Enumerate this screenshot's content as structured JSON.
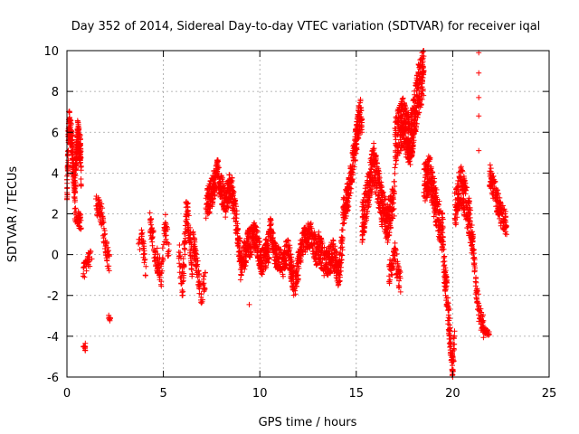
{
  "chart_data": {
    "type": "scatter",
    "title": "Day 352 of 2014, Sidereal Day-to-day VTEC variation (SDTVAR) for receiver iqal",
    "xlabel": "GPS time / hours",
    "ylabel": "SDTVAR / TECUs",
    "xlim": [
      0,
      25
    ],
    "ylim": [
      -6,
      10
    ],
    "xticks": [
      0,
      5,
      10,
      15,
      20,
      25
    ],
    "yticks": [
      -6,
      -4,
      -2,
      0,
      2,
      4,
      6,
      8,
      10
    ],
    "grid": true,
    "marker": "+",
    "colors": {
      "marker": "#ff0000",
      "grid": "#a0a0a0",
      "axis": "#000000"
    },
    "series": [
      {
        "name": "SDTVAR",
        "segments": [
          {
            "t0": 0.0,
            "t1": 0.75,
            "knots": [
              [
                0.0,
                3.0
              ],
              [
                0.1,
                6.5
              ],
              [
                0.25,
                5.5
              ],
              [
                0.4,
                3.0
              ],
              [
                0.55,
                6.0
              ],
              [
                0.7,
                5.0
              ],
              [
                0.75,
                3.5
              ]
            ],
            "spread": 1.5,
            "n": 320
          },
          {
            "t0": 0.4,
            "t1": 0.75,
            "knots": [
              [
                0.4,
                2.0
              ],
              [
                0.75,
                1.5
              ]
            ],
            "spread": 0.8,
            "n": 40
          },
          {
            "t0": 0.8,
            "t1": 1.3,
            "knots": [
              [
                0.8,
                -1.0
              ],
              [
                1.0,
                -0.5
              ],
              [
                1.3,
                0.0
              ]
            ],
            "spread": 0.8,
            "n": 40
          },
          {
            "t0": 0.85,
            "t1": 0.95,
            "knots": [
              [
                0.85,
                -4.4
              ],
              [
                0.95,
                -4.6
              ]
            ],
            "spread": 0.2,
            "n": 8
          },
          {
            "t0": 1.5,
            "t1": 2.2,
            "knots": [
              [
                1.5,
                2.5
              ],
              [
                1.8,
                2.0
              ],
              [
                2.0,
                0.5
              ],
              [
                2.2,
                -0.5
              ]
            ],
            "spread": 1.2,
            "n": 80
          },
          {
            "t0": 2.15,
            "t1": 2.25,
            "knots": [
              [
                2.15,
                -3.0
              ],
              [
                2.25,
                -3.2
              ]
            ],
            "spread": 0.2,
            "n": 6
          },
          {
            "t0": 3.7,
            "t1": 4.1,
            "knots": [
              [
                3.7,
                0.5
              ],
              [
                3.9,
                1.0
              ],
              [
                4.1,
                -1.0
              ]
            ],
            "spread": 1.0,
            "n": 30
          },
          {
            "t0": 4.3,
            "t1": 5.3,
            "knots": [
              [
                4.3,
                1.5
              ],
              [
                4.6,
                0.0
              ],
              [
                4.9,
                -1.0
              ],
              [
                5.1,
                1.5
              ],
              [
                5.3,
                0.0
              ]
            ],
            "spread": 1.2,
            "n": 120
          },
          {
            "t0": 5.8,
            "t1": 6.5,
            "knots": [
              [
                5.8,
                0.0
              ],
              [
                6.0,
                -1.5
              ],
              [
                6.2,
                2.5
              ],
              [
                6.5,
                -0.5
              ]
            ],
            "spread": 1.5,
            "n": 120
          },
          {
            "t0": 6.5,
            "t1": 7.2,
            "knots": [
              [
                6.5,
                1.0
              ],
              [
                6.8,
                -1.0
              ],
              [
                7.0,
                -2.0
              ],
              [
                7.2,
                -1.0
              ]
            ],
            "spread": 1.2,
            "n": 80
          },
          {
            "t0": 7.2,
            "t1": 9.0,
            "knots": [
              [
                7.2,
                2.5
              ],
              [
                7.5,
                3.0
              ],
              [
                7.8,
                4.0
              ],
              [
                8.2,
                2.5
              ],
              [
                8.5,
                3.5
              ],
              [
                8.8,
                1.5
              ],
              [
                9.0,
                0.0
              ]
            ],
            "spread": 1.5,
            "n": 380
          },
          {
            "t0": 9.0,
            "t1": 10.5,
            "knots": [
              [
                9.0,
                -0.5
              ],
              [
                9.4,
                0.5
              ],
              [
                9.8,
                1.0
              ],
              [
                10.1,
                -0.5
              ],
              [
                10.5,
                0.5
              ]
            ],
            "spread": 1.5,
            "n": 280
          },
          {
            "t0": 10.5,
            "t1": 11.5,
            "knots": [
              [
                10.5,
                1.5
              ],
              [
                10.8,
                0.0
              ],
              [
                11.2,
                -0.5
              ],
              [
                11.5,
                0.5
              ]
            ],
            "spread": 1.2,
            "n": 160
          },
          {
            "t0": 11.5,
            "t1": 13.0,
            "knots": [
              [
                11.5,
                0.0
              ],
              [
                11.8,
                -1.5
              ],
              [
                12.2,
                0.5
              ],
              [
                12.6,
                1.0
              ],
              [
                13.0,
                0.0
              ]
            ],
            "spread": 1.4,
            "n": 260
          },
          {
            "t0": 13.0,
            "t1": 14.3,
            "knots": [
              [
                13.0,
                0.5
              ],
              [
                13.4,
                -0.5
              ],
              [
                13.8,
                0.0
              ],
              [
                14.1,
                -1.0
              ],
              [
                14.3,
                1.0
              ]
            ],
            "spread": 1.5,
            "n": 240
          },
          {
            "t0": 14.3,
            "t1": 15.3,
            "knots": [
              [
                14.3,
                2.0
              ],
              [
                14.6,
                3.0
              ],
              [
                14.9,
                5.0
              ],
              [
                15.2,
                7.0
              ],
              [
                15.3,
                6.5
              ]
            ],
            "spread": 1.5,
            "n": 240
          },
          {
            "t0": 15.3,
            "t1": 17.0,
            "knots": [
              [
                15.3,
                1.5
              ],
              [
                15.6,
                3.0
              ],
              [
                15.9,
                4.5
              ],
              [
                16.3,
                2.5
              ],
              [
                16.6,
                1.5
              ],
              [
                17.0,
                3.0
              ]
            ],
            "spread": 2.0,
            "n": 380
          },
          {
            "t0": 16.7,
            "t1": 17.3,
            "knots": [
              [
                16.7,
                -1.0
              ],
              [
                17.0,
                0.0
              ],
              [
                17.3,
                -1.5
              ]
            ],
            "spread": 1.2,
            "n": 70
          },
          {
            "t0": 17.0,
            "t1": 18.5,
            "knots": [
              [
                17.0,
                5.5
              ],
              [
                17.4,
                6.5
              ],
              [
                17.8,
                5.5
              ],
              [
                18.2,
                8.0
              ],
              [
                18.5,
                9.0
              ]
            ],
            "spread": 2.5,
            "n": 460
          },
          {
            "t0": 18.5,
            "t1": 19.5,
            "knots": [
              [
                18.5,
                3.5
              ],
              [
                18.8,
                4.0
              ],
              [
                19.1,
                2.5
              ],
              [
                19.5,
                1.0
              ]
            ],
            "spread": 2.0,
            "n": 240
          },
          {
            "t0": 19.5,
            "t1": 20.1,
            "knots": [
              [
                19.5,
                0.0
              ],
              [
                19.7,
                -2.0
              ],
              [
                19.9,
                -4.5
              ],
              [
                20.0,
                -5.5
              ],
              [
                20.1,
                -4.0
              ]
            ],
            "spread": 1.5,
            "n": 140
          },
          {
            "t0": 20.1,
            "t1": 21.0,
            "knots": [
              [
                20.1,
                2.0
              ],
              [
                20.4,
                3.5
              ],
              [
                20.7,
                2.5
              ],
              [
                21.0,
                1.0
              ]
            ],
            "spread": 2.0,
            "n": 200
          },
          {
            "t0": 21.0,
            "t1": 21.6,
            "knots": [
              [
                21.0,
                1.0
              ],
              [
                21.2,
                -1.5
              ],
              [
                21.4,
                -3.0
              ],
              [
                21.6,
                -3.5
              ]
            ],
            "spread": 1.2,
            "n": 90
          },
          {
            "t0": 21.6,
            "t1": 21.9,
            "knots": [
              [
                21.6,
                -3.7
              ],
              [
                21.9,
                -3.9
              ]
            ],
            "spread": 0.3,
            "n": 25
          },
          {
            "t0": 21.9,
            "t1": 22.8,
            "knots": [
              [
                21.9,
                4.0
              ],
              [
                22.2,
                3.0
              ],
              [
                22.5,
                2.0
              ],
              [
                22.8,
                1.5
              ]
            ],
            "spread": 1.2,
            "n": 140
          }
        ],
        "extra_points": [
          [
            21.35,
            9.9
          ],
          [
            21.35,
            8.9
          ],
          [
            21.35,
            7.7
          ],
          [
            21.35,
            6.8
          ],
          [
            21.35,
            5.1
          ],
          [
            0.95,
            -4.35
          ],
          [
            0.95,
            -4.7
          ],
          [
            2.25,
            -3.1
          ],
          [
            9.45,
            -2.45
          ],
          [
            20.0,
            -5.9
          ]
        ]
      }
    ]
  }
}
